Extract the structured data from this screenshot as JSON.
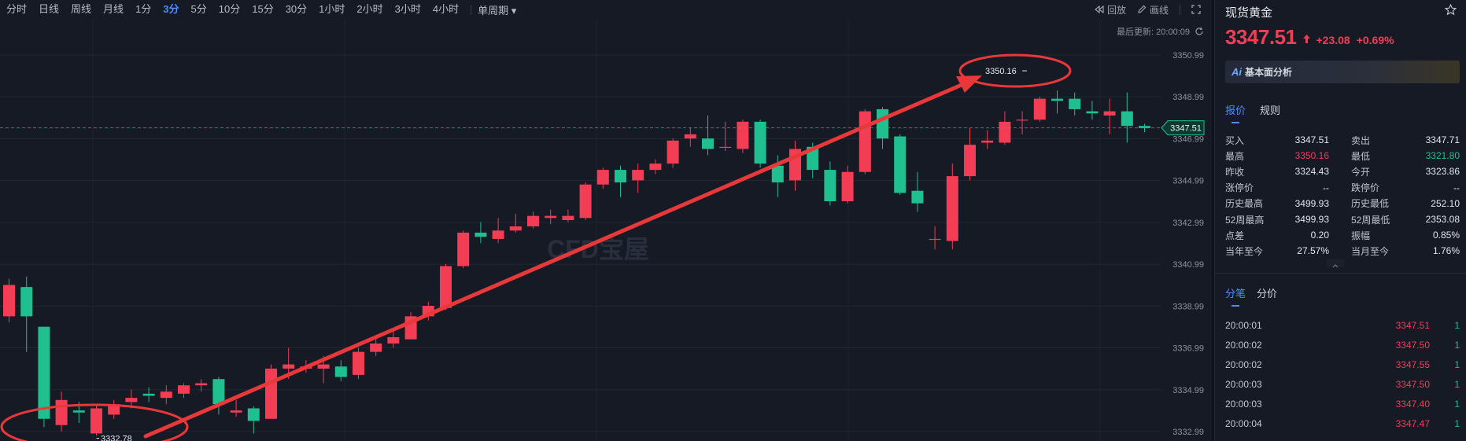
{
  "toolbar": {
    "periods": [
      "分时",
      "日线",
      "周线",
      "月线",
      "1分",
      "3分",
      "5分",
      "10分",
      "15分",
      "30分",
      "1小时",
      "2小时",
      "3小时",
      "4小时"
    ],
    "active_period": "3分",
    "single_week_label": "单周期",
    "replay_label": "回放",
    "draw_label": "画线"
  },
  "update": {
    "label": "最后更新: 20:00:09"
  },
  "chart_data": {
    "type": "candlestick",
    "y_ticks": [
      "3350.99",
      "3348.99",
      "3346.99",
      "3344.99",
      "3342.99",
      "3340.99",
      "3338.99",
      "3336.99",
      "3334.99",
      "3332.99"
    ],
    "ylim": [
      3332.99,
      3350.99
    ],
    "last_price_tag": "3347.51",
    "high_annotation": "3350.16",
    "low_annotation": "3332.78",
    "watermark": "CFD宝屋",
    "colors": {
      "up": "#f23d55",
      "down": "#1fbf8f",
      "grid": "#222734",
      "arrow": "#e8383a"
    },
    "candles": [
      {
        "o": 3338.5,
        "c": 3340.0,
        "h": 3340.3,
        "l": 3338.2
      },
      {
        "o": 3339.9,
        "c": 3338.5,
        "h": 3340.4,
        "l": 3336.8
      },
      {
        "o": 3338.0,
        "c": 3333.6,
        "h": 3338.0,
        "l": 3333.2
      },
      {
        "o": 3333.3,
        "c": 3334.5,
        "h": 3334.9,
        "l": 3333.0
      },
      {
        "o": 3334.0,
        "c": 3333.9,
        "h": 3334.4,
        "l": 3333.4
      },
      {
        "o": 3332.9,
        "c": 3334.1,
        "h": 3334.3,
        "l": 3332.8
      },
      {
        "o": 3333.8,
        "c": 3334.3,
        "h": 3334.5,
        "l": 3333.6
      },
      {
        "o": 3334.4,
        "c": 3334.6,
        "h": 3335.0,
        "l": 3334.1
      },
      {
        "o": 3334.8,
        "c": 3334.7,
        "h": 3335.1,
        "l": 3334.4
      },
      {
        "o": 3334.6,
        "c": 3334.9,
        "h": 3335.2,
        "l": 3334.3
      },
      {
        "o": 3334.8,
        "c": 3335.2,
        "h": 3335.3,
        "l": 3334.6
      },
      {
        "o": 3335.2,
        "c": 3335.3,
        "h": 3335.5,
        "l": 3334.9
      },
      {
        "o": 3335.5,
        "c": 3334.3,
        "h": 3335.6,
        "l": 3333.8
      },
      {
        "o": 3333.9,
        "c": 3334.0,
        "h": 3334.5,
        "l": 3333.7
      },
      {
        "o": 3334.1,
        "c": 3333.5,
        "h": 3334.2,
        "l": 3332.9
      },
      {
        "o": 3333.6,
        "c": 3336.0,
        "h": 3336.2,
        "l": 3333.6
      },
      {
        "o": 3336.0,
        "c": 3336.2,
        "h": 3337.0,
        "l": 3335.5
      },
      {
        "o": 3336.0,
        "c": 3336.1,
        "h": 3336.4,
        "l": 3335.8
      },
      {
        "o": 3336.0,
        "c": 3336.2,
        "h": 3336.6,
        "l": 3335.3
      },
      {
        "o": 3336.1,
        "c": 3335.6,
        "h": 3336.4,
        "l": 3335.4
      },
      {
        "o": 3335.7,
        "c": 3336.8,
        "h": 3337.0,
        "l": 3335.5
      },
      {
        "o": 3336.8,
        "c": 3337.2,
        "h": 3337.5,
        "l": 3336.6
      },
      {
        "o": 3337.2,
        "c": 3337.5,
        "h": 3337.9,
        "l": 3337.0
      },
      {
        "o": 3337.4,
        "c": 3338.5,
        "h": 3338.7,
        "l": 3337.4
      },
      {
        "o": 3338.5,
        "c": 3339.0,
        "h": 3339.2,
        "l": 3338.3
      },
      {
        "o": 3338.9,
        "c": 3340.9,
        "h": 3341.0,
        "l": 3338.8
      },
      {
        "o": 3340.9,
        "c": 3342.5,
        "h": 3342.6,
        "l": 3340.8
      },
      {
        "o": 3342.5,
        "c": 3342.3,
        "h": 3343.0,
        "l": 3342.0
      },
      {
        "o": 3342.2,
        "c": 3342.6,
        "h": 3343.2,
        "l": 3342.0
      },
      {
        "o": 3342.6,
        "c": 3342.8,
        "h": 3343.4,
        "l": 3342.5
      },
      {
        "o": 3342.8,
        "c": 3343.3,
        "h": 3343.5,
        "l": 3342.7
      },
      {
        "o": 3343.2,
        "c": 3343.3,
        "h": 3343.6,
        "l": 3342.9
      },
      {
        "o": 3343.1,
        "c": 3343.3,
        "h": 3343.6,
        "l": 3343.0
      },
      {
        "o": 3343.2,
        "c": 3344.8,
        "h": 3344.9,
        "l": 3343.1
      },
      {
        "o": 3344.8,
        "c": 3345.5,
        "h": 3345.6,
        "l": 3344.6
      },
      {
        "o": 3345.5,
        "c": 3344.9,
        "h": 3345.7,
        "l": 3344.2
      },
      {
        "o": 3345.0,
        "c": 3345.5,
        "h": 3345.8,
        "l": 3344.4
      },
      {
        "o": 3345.5,
        "c": 3345.8,
        "h": 3346.0,
        "l": 3345.3
      },
      {
        "o": 3345.8,
        "c": 3346.9,
        "h": 3347.0,
        "l": 3345.6
      },
      {
        "o": 3347.0,
        "c": 3347.2,
        "h": 3347.5,
        "l": 3346.6
      },
      {
        "o": 3347.0,
        "c": 3346.5,
        "h": 3348.1,
        "l": 3346.2
      },
      {
        "o": 3346.6,
        "c": 3346.6,
        "h": 3347.8,
        "l": 3346.4
      },
      {
        "o": 3346.5,
        "c": 3347.8,
        "h": 3347.9,
        "l": 3346.3
      },
      {
        "o": 3347.8,
        "c": 3345.8,
        "h": 3347.9,
        "l": 3345.6
      },
      {
        "o": 3345.7,
        "c": 3344.9,
        "h": 3346.2,
        "l": 3344.2
      },
      {
        "o": 3345.0,
        "c": 3346.5,
        "h": 3346.9,
        "l": 3344.5
      },
      {
        "o": 3346.6,
        "c": 3345.5,
        "h": 3346.8,
        "l": 3345.1
      },
      {
        "o": 3345.5,
        "c": 3344.0,
        "h": 3345.9,
        "l": 3343.8
      },
      {
        "o": 3344.0,
        "c": 3345.4,
        "h": 3345.7,
        "l": 3343.9
      },
      {
        "o": 3345.4,
        "c": 3348.3,
        "h": 3348.4,
        "l": 3345.3
      },
      {
        "o": 3348.4,
        "c": 3347.0,
        "h": 3348.5,
        "l": 3346.5
      },
      {
        "o": 3347.1,
        "c": 3344.4,
        "h": 3347.2,
        "l": 3344.3
      },
      {
        "o": 3344.5,
        "c": 3343.9,
        "h": 3345.4,
        "l": 3343.5
      },
      {
        "o": 3342.2,
        "c": 3342.2,
        "h": 3342.8,
        "l": 3341.7
      },
      {
        "o": 3342.1,
        "c": 3345.2,
        "h": 3345.8,
        "l": 3341.7
      },
      {
        "o": 3345.2,
        "c": 3346.7,
        "h": 3347.5,
        "l": 3345.0
      },
      {
        "o": 3346.8,
        "c": 3346.9,
        "h": 3347.4,
        "l": 3346.5
      },
      {
        "o": 3346.8,
        "c": 3347.8,
        "h": 3348.3,
        "l": 3346.7
      },
      {
        "o": 3347.9,
        "c": 3347.9,
        "h": 3348.3,
        "l": 3347.2
      },
      {
        "o": 3347.9,
        "c": 3348.9,
        "h": 3349.0,
        "l": 3347.8
      },
      {
        "o": 3348.9,
        "c": 3348.8,
        "h": 3349.3,
        "l": 3348.2
      },
      {
        "o": 3348.9,
        "c": 3348.4,
        "h": 3349.2,
        "l": 3348.1
      },
      {
        "o": 3348.3,
        "c": 3348.2,
        "h": 3348.8,
        "l": 3347.9
      },
      {
        "o": 3348.1,
        "c": 3348.3,
        "h": 3348.9,
        "l": 3347.2
      },
      {
        "o": 3348.3,
        "c": 3347.6,
        "h": 3349.2,
        "l": 3346.8
      },
      {
        "o": 3347.6,
        "c": 3347.5,
        "h": 3347.7,
        "l": 3347.3
      }
    ]
  },
  "panel": {
    "symbol": "现货黄金",
    "last_price": "3347.51",
    "change_abs": "+23.08",
    "change_pct": "+0.69%",
    "ai_logo": "Ai",
    "ai_label": "基本面分析",
    "quote_tabs": [
      "报价",
      "规则"
    ],
    "quote_rows": [
      {
        "l1": "买入",
        "v1": "3347.51",
        "c1": "",
        "l2": "卖出",
        "v2": "3347.71",
        "c2": ""
      },
      {
        "l1": "最高",
        "v1": "3350.16",
        "c1": "red",
        "l2": "最低",
        "v2": "3321.80",
        "c2": "green"
      },
      {
        "l1": "昨收",
        "v1": "3324.43",
        "c1": "",
        "l2": "今开",
        "v2": "3323.86",
        "c2": ""
      },
      {
        "l1": "涨停价",
        "v1": "--",
        "c1": "",
        "l2": "跌停价",
        "v2": "--",
        "c2": ""
      },
      {
        "l1": "历史最高",
        "v1": "3499.93",
        "c1": "",
        "l2": "历史最低",
        "v2": "252.10",
        "c2": ""
      },
      {
        "l1": "52周最高",
        "v1": "3499.93",
        "c1": "",
        "l2": "52周最低",
        "v2": "2353.08",
        "c2": ""
      },
      {
        "l1": "点差",
        "v1": "0.20",
        "c1": "",
        "l2": "振幅",
        "v2": "0.85%",
        "c2": ""
      },
      {
        "l1": "当年至今",
        "v1": "27.57%",
        "c1": "",
        "l2": "当月至今",
        "v2": "1.76%",
        "c2": ""
      }
    ],
    "tick_tabs": [
      "分笔",
      "分价"
    ],
    "ticks": [
      {
        "time": "20:00:01",
        "price": "3347.51",
        "vol": "1"
      },
      {
        "time": "20:00:02",
        "price": "3347.50",
        "vol": "1"
      },
      {
        "time": "20:00:02",
        "price": "3347.55",
        "vol": "1"
      },
      {
        "time": "20:00:03",
        "price": "3347.50",
        "vol": "1"
      },
      {
        "time": "20:00:03",
        "price": "3347.40",
        "vol": "1"
      },
      {
        "time": "20:00:04",
        "price": "3347.47",
        "vol": "1"
      }
    ]
  }
}
